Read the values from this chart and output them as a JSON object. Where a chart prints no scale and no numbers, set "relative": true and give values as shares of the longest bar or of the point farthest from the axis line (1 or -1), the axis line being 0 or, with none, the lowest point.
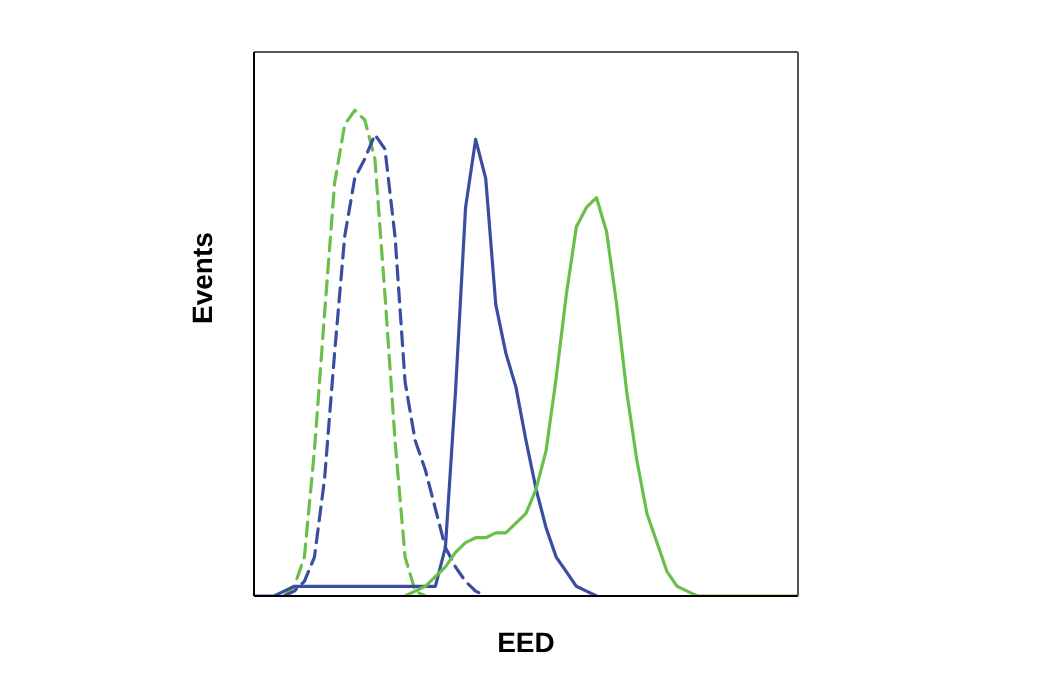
{
  "chart_data": {
    "type": "line",
    "relative": true,
    "xlabel": "EED",
    "ylabel": "Events",
    "grid": false,
    "legend": false,
    "marker": "none",
    "categories": [
      null,
      null,
      null,
      null,
      null,
      null,
      null,
      null,
      null,
      null,
      null,
      null,
      null,
      null,
      null,
      null,
      null,
      null,
      null,
      null,
      null,
      null,
      null,
      null,
      null,
      null,
      null,
      null,
      null,
      null,
      null,
      null,
      null,
      null,
      null,
      null,
      null,
      null,
      null,
      null,
      null,
      null,
      null,
      null,
      null,
      null,
      null,
      null,
      null,
      null,
      null,
      null,
      null,
      null,
      null
    ],
    "series": [
      {
        "color": "#6abf4b",
        "line_style": "dashed",
        "values": [
          null,
          null,
          null,
          0,
          0.02,
          0.08,
          0.3,
          0.58,
          0.85,
          0.97,
          1,
          0.98,
          0.9,
          0.62,
          0.32,
          0.08,
          0.01,
          0,
          null,
          null,
          null,
          null,
          null,
          null,
          null,
          null,
          null,
          null,
          null,
          null,
          null,
          null,
          null,
          null,
          null,
          null,
          null,
          null,
          null,
          null,
          null,
          null,
          null,
          null,
          null,
          null,
          null,
          null,
          null,
          null,
          null,
          null,
          null,
          null,
          null
        ]
      },
      {
        "color": "#3a4ea0",
        "line_style": "dashed",
        "values": [
          null,
          null,
          null,
          0,
          0.01,
          0.03,
          0.08,
          0.24,
          0.5,
          0.74,
          0.86,
          0.9,
          0.95,
          0.92,
          0.74,
          0.44,
          0.32,
          0.26,
          0.18,
          0.1,
          0.06,
          0.03,
          0.01,
          0,
          null,
          null,
          null,
          null,
          null,
          null,
          null,
          null,
          null,
          null,
          null,
          null,
          null,
          null,
          null,
          null,
          null,
          null,
          null,
          null,
          null,
          null,
          null,
          null,
          null,
          null,
          null,
          null,
          null,
          null,
          null
        ]
      },
      {
        "color": "#3a4ea0",
        "line_style": "solid",
        "values": [
          0,
          0,
          0,
          0.01,
          0.02,
          0.02,
          0.02,
          0.02,
          0.02,
          0.02,
          0.02,
          0.02,
          0.02,
          0.02,
          0.02,
          0.02,
          0.02,
          0.02,
          0.02,
          0.1,
          0.42,
          0.8,
          0.94,
          0.86,
          0.6,
          0.5,
          0.43,
          0.32,
          0.22,
          0.14,
          0.08,
          0.05,
          0.02,
          0.01,
          0,
          null,
          null,
          null,
          null,
          null,
          null,
          null,
          null,
          null,
          null,
          null,
          null,
          null,
          null,
          null,
          null,
          null,
          null,
          null,
          null
        ]
      },
      {
        "color": "#6abf4b",
        "line_style": "solid",
        "values": [
          null,
          null,
          null,
          null,
          null,
          null,
          null,
          null,
          null,
          null,
          null,
          null,
          null,
          null,
          null,
          0,
          0.01,
          0.02,
          0.04,
          0.06,
          0.09,
          0.11,
          0.12,
          0.12,
          0.13,
          0.13,
          0.15,
          0.17,
          0.22,
          0.3,
          0.45,
          0.62,
          0.76,
          0.8,
          0.82,
          0.75,
          0.6,
          0.42,
          0.28,
          0.17,
          0.11,
          0.05,
          0.02,
          0.01,
          0,
          0,
          0,
          0,
          0,
          0,
          0,
          0,
          0,
          0,
          0
        ]
      }
    ]
  }
}
